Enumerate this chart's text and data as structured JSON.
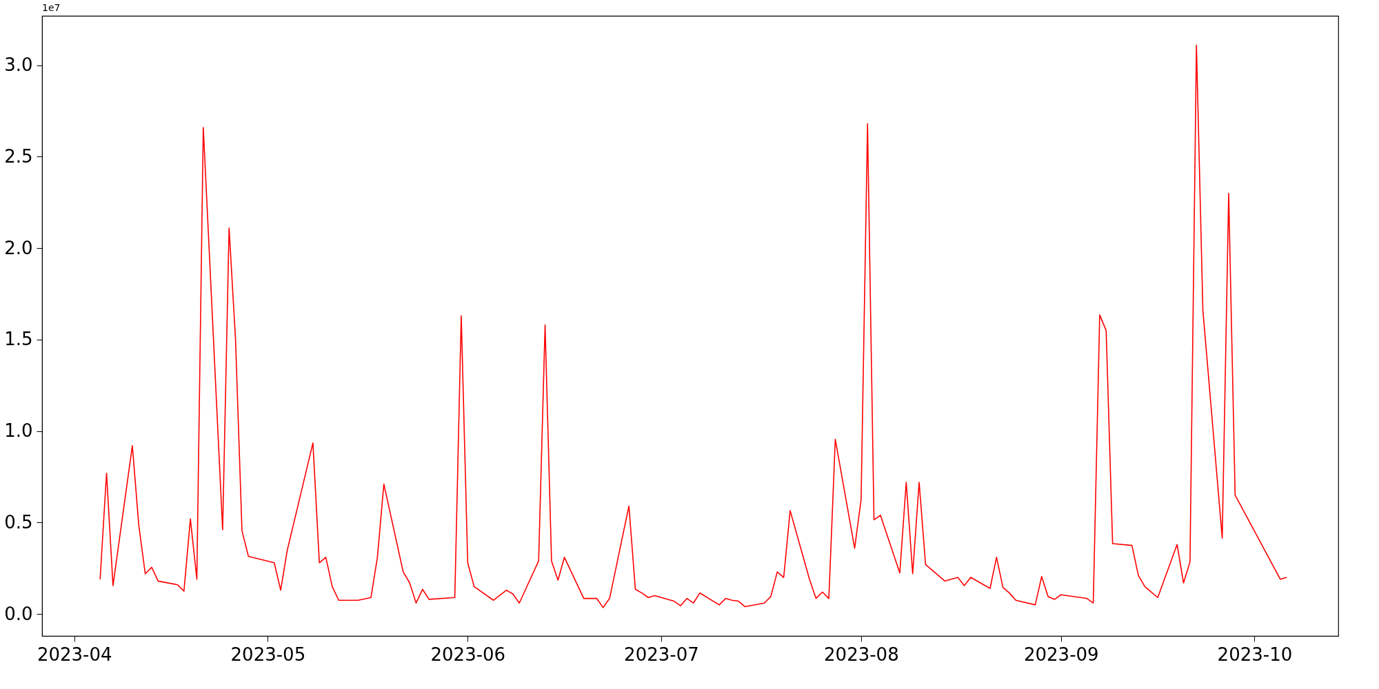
{
  "chart_data": {
    "type": "line",
    "x": [
      "2023-04-05",
      "2023-04-06",
      "2023-04-07",
      "2023-04-10",
      "2023-04-11",
      "2023-04-12",
      "2023-04-13",
      "2023-04-14",
      "2023-04-17",
      "2023-04-18",
      "2023-04-19",
      "2023-04-20",
      "2023-04-21",
      "2023-04-24",
      "2023-04-25",
      "2023-04-26",
      "2023-04-27",
      "2023-04-28",
      "2023-05-02",
      "2023-05-03",
      "2023-05-04",
      "2023-05-08",
      "2023-05-09",
      "2023-05-10",
      "2023-05-11",
      "2023-05-12",
      "2023-05-15",
      "2023-05-17",
      "2023-05-18",
      "2023-05-19",
      "2023-05-22",
      "2023-05-23",
      "2023-05-24",
      "2023-05-25",
      "2023-05-26",
      "2023-05-30",
      "2023-05-31",
      "2023-06-01",
      "2023-06-02",
      "2023-06-05",
      "2023-06-07",
      "2023-06-08",
      "2023-06-09",
      "2023-06-12",
      "2023-06-13",
      "2023-06-14",
      "2023-06-15",
      "2023-06-16",
      "2023-06-19",
      "2023-06-20",
      "2023-06-21",
      "2023-06-22",
      "2023-06-23",
      "2023-06-26",
      "2023-06-27",
      "2023-06-28",
      "2023-06-29",
      "2023-06-30",
      "2023-07-03",
      "2023-07-04",
      "2023-07-05",
      "2023-07-06",
      "2023-07-07",
      "2023-07-10",
      "2023-07-11",
      "2023-07-12",
      "2023-07-13",
      "2023-07-14",
      "2023-07-17",
      "2023-07-18",
      "2023-07-19",
      "2023-07-20",
      "2023-07-21",
      "2023-07-24",
      "2023-07-25",
      "2023-07-26",
      "2023-07-27",
      "2023-07-28",
      "2023-07-31",
      "2023-08-01",
      "2023-08-02",
      "2023-08-03",
      "2023-08-04",
      "2023-08-07",
      "2023-08-08",
      "2023-08-09",
      "2023-08-10",
      "2023-08-11",
      "2023-08-14",
      "2023-08-16",
      "2023-08-17",
      "2023-08-18",
      "2023-08-21",
      "2023-08-22",
      "2023-08-23",
      "2023-08-24",
      "2023-08-25",
      "2023-08-28",
      "2023-08-29",
      "2023-08-30",
      "2023-08-31",
      "2023-09-01",
      "2023-09-05",
      "2023-09-06",
      "2023-09-07",
      "2023-09-08",
      "2023-09-09",
      "2023-09-12",
      "2023-09-13",
      "2023-09-14",
      "2023-09-15",
      "2023-09-16",
      "2023-09-19",
      "2023-09-20",
      "2023-09-21",
      "2023-09-22",
      "2023-09-23",
      "2023-09-26",
      "2023-09-27",
      "2023-09-28",
      "2023-10-05",
      "2023-10-06"
    ],
    "series": [
      {
        "color": "#ff0000",
        "values": [
          0.19,
          0.77,
          0.155,
          0.92,
          0.485,
          0.22,
          0.255,
          0.18,
          0.16,
          0.125,
          0.52,
          0.19,
          2.66,
          0.46,
          2.11,
          1.5,
          0.455,
          0.315,
          0.28,
          0.13,
          0.345,
          0.935,
          0.28,
          0.31,
          0.15,
          0.075,
          0.075,
          0.09,
          0.31,
          0.71,
          0.23,
          0.17,
          0.06,
          0.135,
          0.08,
          0.09,
          1.63,
          0.28,
          0.15,
          0.075,
          0.13,
          0.11,
          0.06,
          0.29,
          1.58,
          0.29,
          0.185,
          0.31,
          0.085,
          0.085,
          0.085,
          0.035,
          0.085,
          0.59,
          0.135,
          0.115,
          0.09,
          0.1,
          0.07,
          0.045,
          0.085,
          0.06,
          0.115,
          0.05,
          0.085,
          0.075,
          0.07,
          0.04,
          0.06,
          0.095,
          0.23,
          0.2,
          0.565,
          0.19,
          0.085,
          0.12,
          0.085,
          0.955,
          0.36,
          0.625,
          2.68,
          0.515,
          0.54,
          0.225,
          0.72,
          0.22,
          0.72,
          0.27,
          0.18,
          0.2,
          0.155,
          0.2,
          0.14,
          0.31,
          0.145,
          0.115,
          0.075,
          0.05,
          0.205,
          0.095,
          0.08,
          0.105,
          0.085,
          0.06,
          1.635,
          1.55,
          0.385,
          0.375,
          0.21,
          0.15,
          0.12,
          0.09,
          0.38,
          0.17,
          0.285,
          3.11,
          1.66,
          0.415,
          2.3,
          0.65,
          0.19,
          0.2
        ]
      }
    ],
    "xlim": [
      "2023-03-27",
      "2023-10-14"
    ],
    "xticks": [
      "2023-04",
      "2023-05",
      "2023-06",
      "2023-07",
      "2023-08",
      "2023-09",
      "2023-10"
    ],
    "ylim": [
      -0.12,
      3.27
    ],
    "yticks": [
      {
        "value": 0,
        "label": "0.0"
      },
      {
        "value": 0.5,
        "label": "0.5"
      },
      {
        "value": 1,
        "label": "1.0"
      },
      {
        "value": 1.5,
        "label": "1.5"
      },
      {
        "value": 2,
        "label": "2.0"
      },
      {
        "value": 2.5,
        "label": "2.5"
      },
      {
        "value": 3,
        "label": "3.0"
      }
    ],
    "annotations": [
      "1e7"
    ],
    "grid": false,
    "marker": "none",
    "line_style": "solid"
  }
}
